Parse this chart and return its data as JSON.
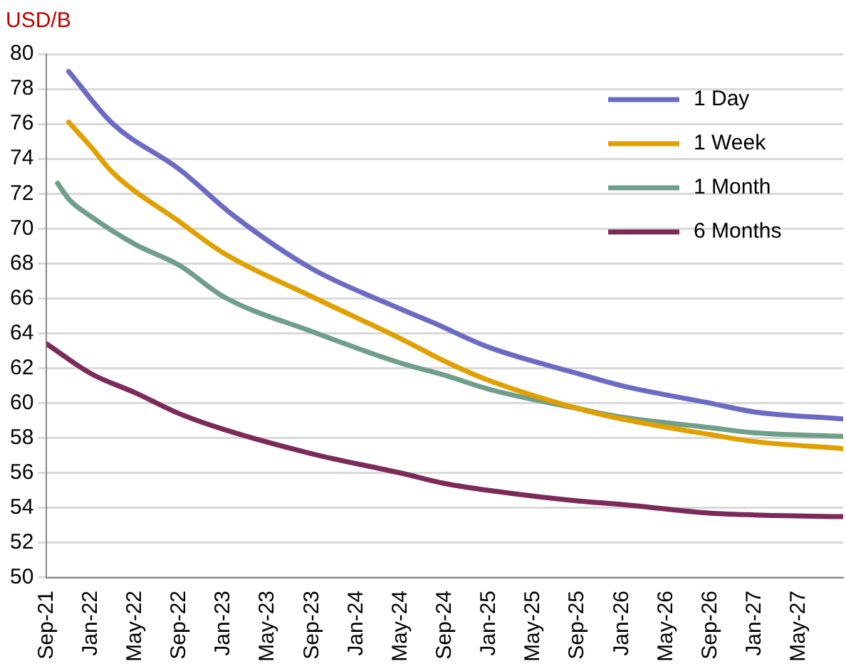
{
  "chart_data": {
    "type": "line",
    "ylabel": "USD/B",
    "xlim": [
      "2021-09",
      "2027-09"
    ],
    "xticks": [
      {
        "value": "2021-09",
        "label": "Sep-21"
      },
      {
        "value": "2022-01",
        "label": "Jan-22"
      },
      {
        "value": "2022-05",
        "label": "May-22"
      },
      {
        "value": "2022-09",
        "label": "Sep-22"
      },
      {
        "value": "2023-01",
        "label": "Jan-23"
      },
      {
        "value": "2023-05",
        "label": "May-23"
      },
      {
        "value": "2023-09",
        "label": "Sep-23"
      },
      {
        "value": "2024-01",
        "label": "Jan-24"
      },
      {
        "value": "2024-05",
        "label": "May-24"
      },
      {
        "value": "2024-09",
        "label": "Sep-24"
      },
      {
        "value": "2025-01",
        "label": "Jan-25"
      },
      {
        "value": "2025-05",
        "label": "May-25"
      },
      {
        "value": "2025-09",
        "label": "Sep-25"
      },
      {
        "value": "2026-01",
        "label": "Jan-26"
      },
      {
        "value": "2026-05",
        "label": "May-26"
      },
      {
        "value": "2026-09",
        "label": "Sep-26"
      },
      {
        "value": "2027-01",
        "label": "Jan-27"
      },
      {
        "value": "2027-05",
        "label": "May-27"
      }
    ],
    "ylim": [
      50,
      80
    ],
    "yticks": [
      50,
      52,
      54,
      56,
      58,
      60,
      62,
      64,
      66,
      68,
      70,
      72,
      74,
      76,
      78,
      80
    ],
    "grid": "y",
    "legend": "top right",
    "marker": "none",
    "line_style": "solid",
    "series": [
      {
        "name": "1 Day",
        "color": "#6b6bc4",
        "x": [
          "2021-11",
          "2022-03",
          "2022-09",
          "2023-02",
          "2023-09",
          "2024-05",
          "2024-08",
          "2025-01",
          "2025-09",
          "2026-01",
          "2026-09",
          "2027-01",
          "2027-09"
        ],
        "values": [
          79.0,
          76.0,
          73.4,
          70.7,
          67.7,
          65.4,
          64.6,
          63.2,
          61.7,
          61.0,
          60.0,
          59.5,
          59.1
        ]
      },
      {
        "name": "1 Week",
        "color": "#e0a100",
        "x": [
          "2021-11",
          "2022-01",
          "2022-03",
          "2022-09",
          "2023-01",
          "2023-09",
          "2024-05",
          "2024-09",
          "2025-01",
          "2025-09",
          "2026-01",
          "2026-09",
          "2027-01",
          "2027-09"
        ],
        "values": [
          76.1,
          74.7,
          73.2,
          70.4,
          68.6,
          66.1,
          63.7,
          62.4,
          61.3,
          59.7,
          59.1,
          58.2,
          57.8,
          57.4
        ]
      },
      {
        "name": "1 Month",
        "color": "#6f9e8a",
        "x": [
          "2021-10",
          "2021-11",
          "2022-01",
          "2022-05",
          "2022-09",
          "2023-01",
          "2023-09",
          "2024-05",
          "2024-09",
          "2025-01",
          "2025-09",
          "2026-01",
          "2026-09",
          "2027-01",
          "2027-09"
        ],
        "values": [
          72.6,
          71.7,
          70.7,
          69.1,
          67.9,
          66.1,
          64.1,
          62.3,
          61.6,
          60.8,
          59.7,
          59.2,
          58.6,
          58.3,
          58.1
        ]
      },
      {
        "name": "6 Months",
        "color": "#7b2a5a",
        "x": [
          "2021-09",
          "2022-01",
          "2022-05",
          "2022-09",
          "2023-01",
          "2023-09",
          "2024-05",
          "2024-09",
          "2025-01",
          "2025-09",
          "2026-01",
          "2026-09",
          "2027-01",
          "2027-09"
        ],
        "values": [
          63.4,
          61.7,
          60.6,
          59.4,
          58.5,
          57.1,
          56.0,
          55.4,
          55.0,
          54.4,
          54.2,
          53.7,
          53.6,
          53.5
        ]
      }
    ]
  }
}
